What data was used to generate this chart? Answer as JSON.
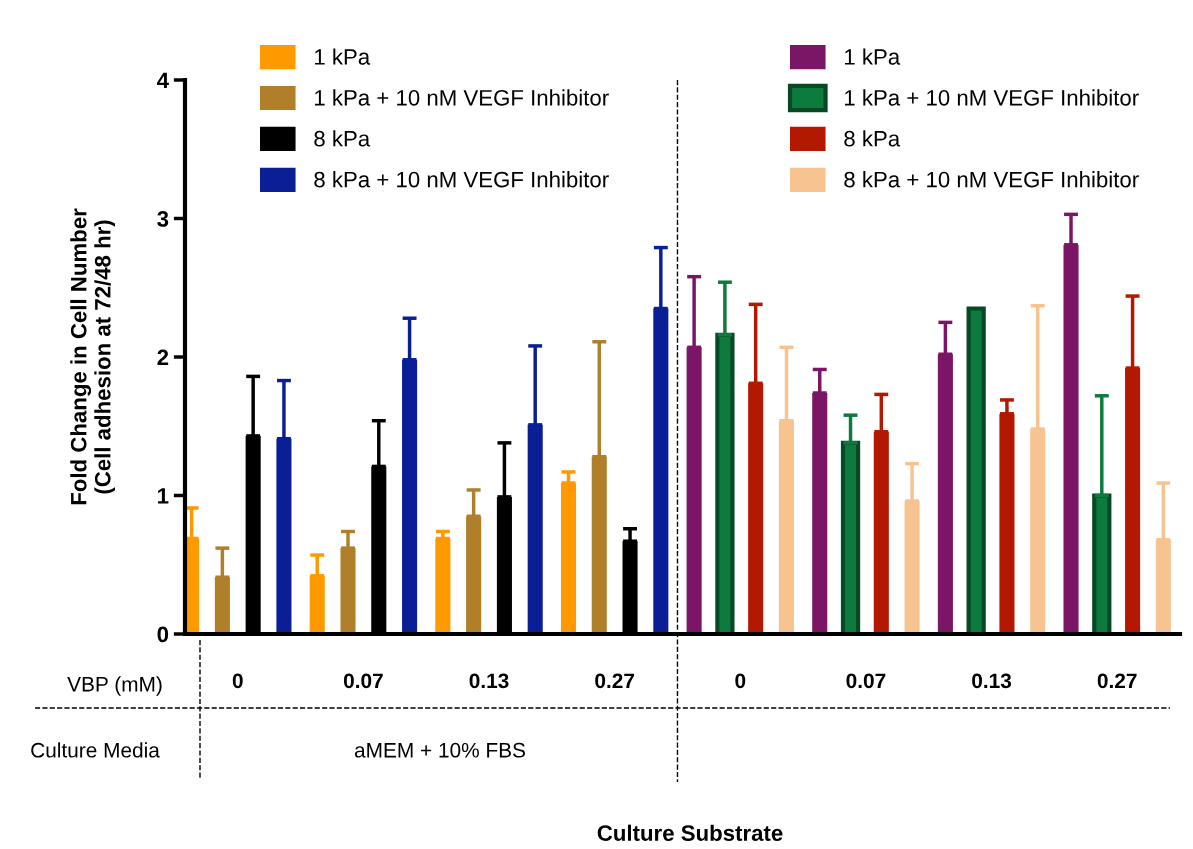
{
  "chart_data": {
    "type": "bar",
    "ylabel": "Fold Change in Cell Number\n(Cell adhesion at 72/48 hr)",
    "categories": [
      "0",
      "0.07",
      "0.13",
      "0.27",
      "0",
      "0.07",
      "0.13",
      "0.27"
    ],
    "ylim": [
      0,
      4
    ],
    "yticks": [
      0,
      1,
      2,
      3,
      4
    ],
    "grid": false,
    "legend": "top",
    "annotations": [
      "VBP (mM)",
      "Culture Media",
      "aMEM + 10% FBS",
      "Culture Substrate"
    ],
    "series": [
      {
        "name": "1 kPa",
        "color": "#ff9900",
        "values": [
          0.69,
          0.42,
          0.69,
          1.09,
          null,
          null,
          null,
          null
        ],
        "errors": [
          [
            0.69,
            0.91
          ],
          [
            0.42,
            0.57
          ],
          [
            0.69,
            0.74
          ],
          [
            1.09,
            1.17
          ],
          null,
          null,
          null,
          null
        ]
      },
      {
        "name": "1 kPa + 10 nM VEGF Inhibitor",
        "color": "#b07f2a",
        "values": [
          0.41,
          0.62,
          0.85,
          1.28,
          null,
          null,
          null,
          null
        ],
        "errors": [
          [
            0.41,
            0.62
          ],
          [
            0.62,
            0.74
          ],
          [
            0.85,
            1.04
          ],
          [
            1.28,
            2.11
          ],
          null,
          null,
          null,
          null
        ]
      },
      {
        "name": "8 kPa",
        "color": "#000000",
        "values": [
          1.43,
          1.21,
          0.99,
          0.67,
          null,
          null,
          null,
          null
        ],
        "errors": [
          [
            1.43,
            1.86
          ],
          [
            1.21,
            1.54
          ],
          [
            0.99,
            1.38
          ],
          [
            0.67,
            0.76
          ],
          null,
          null,
          null,
          null
        ]
      },
      {
        "name": "8 kPa + 10 nM VEGF Inhibitor",
        "color": "#0a1f96",
        "values": [
          1.41,
          1.98,
          1.51,
          2.35,
          null,
          null,
          null,
          null
        ],
        "errors": [
          [
            1.41,
            1.83
          ],
          [
            1.98,
            2.28
          ],
          [
            1.51,
            2.08
          ],
          [
            2.35,
            2.79
          ],
          null,
          null,
          null,
          null
        ]
      },
      {
        "name": "1 kPa",
        "color": "#7b1667",
        "values": [
          null,
          null,
          null,
          null,
          2.07,
          1.74,
          2.02,
          2.81
        ],
        "errors": [
          null,
          null,
          null,
          null,
          [
            2.07,
            2.58
          ],
          [
            1.74,
            1.91
          ],
          [
            2.02,
            2.25
          ],
          [
            2.81,
            3.03
          ]
        ]
      },
      {
        "name": "1 kPa + 10 nM VEGF Inhibitor",
        "color": "#0d7a3e",
        "values": [
          null,
          null,
          null,
          null,
          2.16,
          1.38,
          2.35,
          1.0
        ],
        "errors": [
          null,
          null,
          null,
          null,
          [
            2.16,
            2.54
          ],
          [
            1.38,
            1.58
          ],
          null,
          [
            1.0,
            1.72
          ]
        ]
      },
      {
        "name": "8 kPa",
        "color": "#b31800",
        "values": [
          null,
          null,
          null,
          null,
          1.81,
          1.46,
          1.59,
          1.92
        ],
        "errors": [
          null,
          null,
          null,
          null,
          [
            1.81,
            2.38
          ],
          [
            1.46,
            1.73
          ],
          [
            1.59,
            1.69
          ],
          [
            1.92,
            2.44
          ]
        ]
      },
      {
        "name": "8 kPa + 10 nM VEGF Inhibitor",
        "color": "#f7c391",
        "values": [
          null,
          null,
          null,
          null,
          1.54,
          0.96,
          1.48,
          0.68
        ],
        "errors": [
          null,
          null,
          null,
          null,
          [
            1.54,
            2.07
          ],
          [
            0.96,
            1.23
          ],
          [
            1.48,
            2.37
          ],
          [
            0.68,
            1.09
          ]
        ]
      }
    ]
  }
}
